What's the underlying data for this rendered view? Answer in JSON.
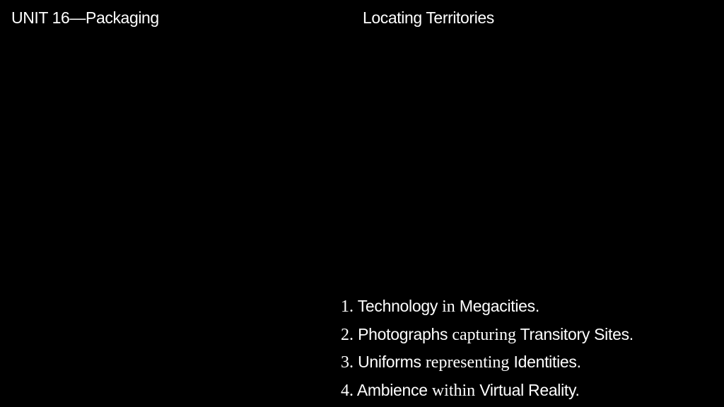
{
  "header": {
    "unit": "UNIT 16—Packaging",
    "topic": "Locating Territories"
  },
  "items": [
    {
      "number": "1.",
      "first": "Technology",
      "middle": "in",
      "last": "Megacities."
    },
    {
      "number": "2.",
      "first": "Photographs",
      "middle": "capturing",
      "last": "Transitory Sites."
    },
    {
      "number": "3.",
      "first": "Uniforms",
      "middle": "representing",
      "last": "Identities."
    },
    {
      "number": "4.",
      "first": "Ambience",
      "middle": "within",
      "last": "Virtual Reality."
    }
  ],
  "colors": {
    "background": "#000000",
    "text": "#ffffff"
  }
}
